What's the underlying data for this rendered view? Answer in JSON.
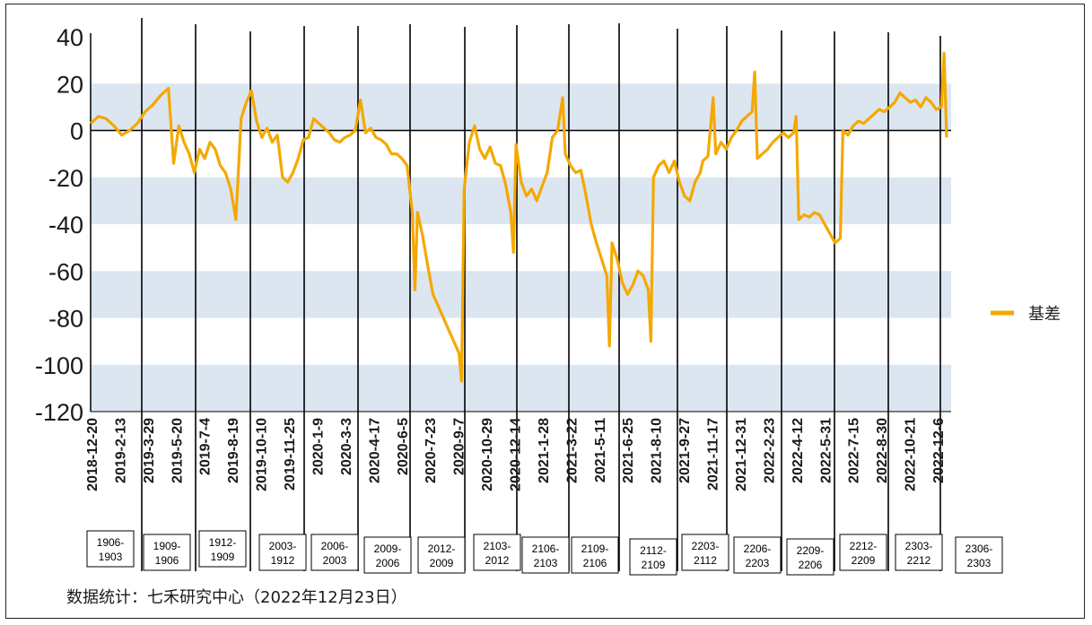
{
  "source_note": "数据统计：七禾研究中心（2022年12月23日）",
  "chart_data": {
    "type": "line",
    "title": "",
    "xlabel": "",
    "ylabel": "",
    "ylim": [
      -120,
      40
    ],
    "yticks": [
      40,
      20,
      0,
      -20,
      -40,
      -60,
      -80,
      -100,
      -120
    ],
    "grid": "alternating horizontal bands",
    "legend_position": "right",
    "colors": {
      "series": "#F5A800",
      "band": "#DCE6F1",
      "axis": "#000000"
    },
    "x_tick_labels": [
      "2018-12-20",
      "2019-2-13",
      "2019-3-29",
      "2019-5-20",
      "2019-7-4",
      "2019-8-19",
      "2019-10-10",
      "2019-11-25",
      "2020-1-9",
      "2020-3-3",
      "2020-4-17",
      "2020-6-5",
      "2020-7-23",
      "2020-9-7",
      "2020-10-29",
      "2020-12-14",
      "2021-1-28",
      "2021-3-22",
      "2021-5-11",
      "2021-6-25",
      "2021-8-10",
      "2021-9-27",
      "2021-11-17",
      "2021-12-31",
      "2022-2-23",
      "2022-4-12",
      "2022-5-31",
      "2022-7-15",
      "2022-8-30",
      "2022-10-21",
      "2022-12-6"
    ],
    "contract_labels": [
      {
        "top": "1906-",
        "bottom": "1903"
      },
      {
        "top": "1909-",
        "bottom": "1906"
      },
      {
        "top": "1912-",
        "bottom": "1909"
      },
      {
        "top": "2003-",
        "bottom": "1912"
      },
      {
        "top": "2006-",
        "bottom": "2003"
      },
      {
        "top": "2009-",
        "bottom": "2006"
      },
      {
        "top": "2012-",
        "bottom": "2009"
      },
      {
        "top": "2103-",
        "bottom": "2012"
      },
      {
        "top": "2106-",
        "bottom": "2103"
      },
      {
        "top": "2109-",
        "bottom": "2106"
      },
      {
        "top": "2112-",
        "bottom": "2109"
      },
      {
        "top": "2203-",
        "bottom": "2112"
      },
      {
        "top": "2206-",
        "bottom": "2203"
      },
      {
        "top": "2209-",
        "bottom": "2206"
      },
      {
        "top": "2212-",
        "bottom": "2209"
      },
      {
        "top": "2303-",
        "bottom": "2212"
      },
      {
        "top": "2306-",
        "bottom": "2303"
      }
    ],
    "series": [
      {
        "name": "基差",
        "points": [
          [
            0,
            3
          ],
          [
            3,
            6
          ],
          [
            6,
            5
          ],
          [
            9,
            2
          ],
          [
            12,
            -2
          ],
          [
            15,
            0
          ],
          [
            18,
            3
          ],
          [
            21,
            8
          ],
          [
            24,
            11
          ],
          [
            27,
            15
          ],
          [
            30,
            18
          ],
          [
            32,
            -14
          ],
          [
            34,
            2
          ],
          [
            36,
            -5
          ],
          [
            38,
            -10
          ],
          [
            40,
            -18
          ],
          [
            42,
            -8
          ],
          [
            44,
            -12
          ],
          [
            46,
            -5
          ],
          [
            48,
            -8
          ],
          [
            50,
            -15
          ],
          [
            52,
            -18
          ],
          [
            54,
            -25
          ],
          [
            56,
            -38
          ],
          [
            58,
            5
          ],
          [
            60,
            12
          ],
          [
            62,
            17
          ],
          [
            64,
            4
          ],
          [
            66,
            -3
          ],
          [
            68,
            1
          ],
          [
            70,
            -5
          ],
          [
            72,
            -2
          ],
          [
            74,
            -20
          ],
          [
            76,
            -22
          ],
          [
            78,
            -18
          ],
          [
            80,
            -12
          ],
          [
            82,
            -4
          ],
          [
            84,
            -3
          ],
          [
            86,
            5
          ],
          [
            88,
            3
          ],
          [
            90,
            1
          ],
          [
            92,
            -1
          ],
          [
            94,
            -4
          ],
          [
            96,
            -5
          ],
          [
            98,
            -3
          ],
          [
            100,
            -2
          ],
          [
            102,
            0
          ],
          [
            104,
            13
          ],
          [
            106,
            -1
          ],
          [
            108,
            1
          ],
          [
            110,
            -3
          ],
          [
            112,
            -4
          ],
          [
            114,
            -6
          ],
          [
            116,
            -10
          ],
          [
            118,
            -10
          ],
          [
            120,
            -12
          ],
          [
            122,
            -15
          ],
          [
            124,
            -35
          ],
          [
            125,
            -68
          ],
          [
            126,
            -35
          ],
          [
            128,
            -45
          ],
          [
            130,
            -58
          ],
          [
            132,
            -70
          ],
          [
            134,
            -75
          ],
          [
            136,
            -80
          ],
          [
            138,
            -85
          ],
          [
            140,
            -90
          ],
          [
            142,
            -95
          ],
          [
            143,
            -107
          ],
          [
            144,
            -25
          ],
          [
            146,
            -5
          ],
          [
            148,
            2
          ],
          [
            150,
            -8
          ],
          [
            152,
            -12
          ],
          [
            154,
            -7
          ],
          [
            156,
            -14
          ],
          [
            158,
            -15
          ],
          [
            160,
            -23
          ],
          [
            162,
            -35
          ],
          [
            163,
            -52
          ],
          [
            164,
            -6
          ],
          [
            166,
            -22
          ],
          [
            168,
            -28
          ],
          [
            170,
            -25
          ],
          [
            172,
            -30
          ],
          [
            174,
            -24
          ],
          [
            176,
            -18
          ],
          [
            178,
            -3
          ],
          [
            180,
            0
          ],
          [
            182,
            14
          ],
          [
            183,
            -10
          ],
          [
            185,
            -15
          ],
          [
            187,
            -18
          ],
          [
            189,
            -17
          ],
          [
            191,
            -28
          ],
          [
            193,
            -40
          ],
          [
            195,
            -48
          ],
          [
            197,
            -55
          ],
          [
            199,
            -62
          ],
          [
            200,
            -92
          ],
          [
            201,
            -48
          ],
          [
            203,
            -55
          ],
          [
            205,
            -65
          ],
          [
            207,
            -70
          ],
          [
            209,
            -66
          ],
          [
            211,
            -60
          ],
          [
            213,
            -62
          ],
          [
            215,
            -68
          ],
          [
            216,
            -90
          ],
          [
            217,
            -20
          ],
          [
            219,
            -15
          ],
          [
            221,
            -13
          ],
          [
            223,
            -18
          ],
          [
            225,
            -13
          ],
          [
            227,
            -22
          ],
          [
            229,
            -28
          ],
          [
            231,
            -30
          ],
          [
            233,
            -22
          ],
          [
            235,
            -18
          ],
          [
            236,
            -13
          ],
          [
            238,
            -11
          ],
          [
            240,
            14
          ],
          [
            241,
            -10
          ],
          [
            243,
            -5
          ],
          [
            245,
            -8
          ],
          [
            247,
            -3
          ],
          [
            249,
            0
          ],
          [
            251,
            4
          ],
          [
            253,
            6
          ],
          [
            255,
            8
          ],
          [
            256,
            25
          ],
          [
            257,
            -12
          ],
          [
            259,
            -10
          ],
          [
            261,
            -8
          ],
          [
            263,
            -5
          ],
          [
            265,
            -3
          ],
          [
            267,
            -1
          ],
          [
            269,
            -3
          ],
          [
            271,
            -1
          ],
          [
            272,
            6
          ],
          [
            273,
            -38
          ],
          [
            275,
            -36
          ],
          [
            277,
            -37
          ],
          [
            279,
            -35
          ],
          [
            281,
            -36
          ],
          [
            283,
            -40
          ],
          [
            285,
            -44
          ],
          [
            287,
            -48
          ],
          [
            289,
            -46
          ],
          [
            290,
            0
          ],
          [
            292,
            -2
          ],
          [
            294,
            2
          ],
          [
            296,
            4
          ],
          [
            298,
            3
          ],
          [
            300,
            5
          ],
          [
            302,
            7
          ],
          [
            304,
            9
          ],
          [
            306,
            8
          ],
          [
            308,
            10
          ],
          [
            310,
            12
          ],
          [
            312,
            16
          ],
          [
            314,
            14
          ],
          [
            316,
            12
          ],
          [
            318,
            13
          ],
          [
            320,
            10
          ],
          [
            322,
            14
          ],
          [
            324,
            12
          ],
          [
            326,
            9
          ],
          [
            328,
            10
          ],
          [
            329,
            33
          ],
          [
            330,
            -3
          ]
        ]
      }
    ]
  }
}
